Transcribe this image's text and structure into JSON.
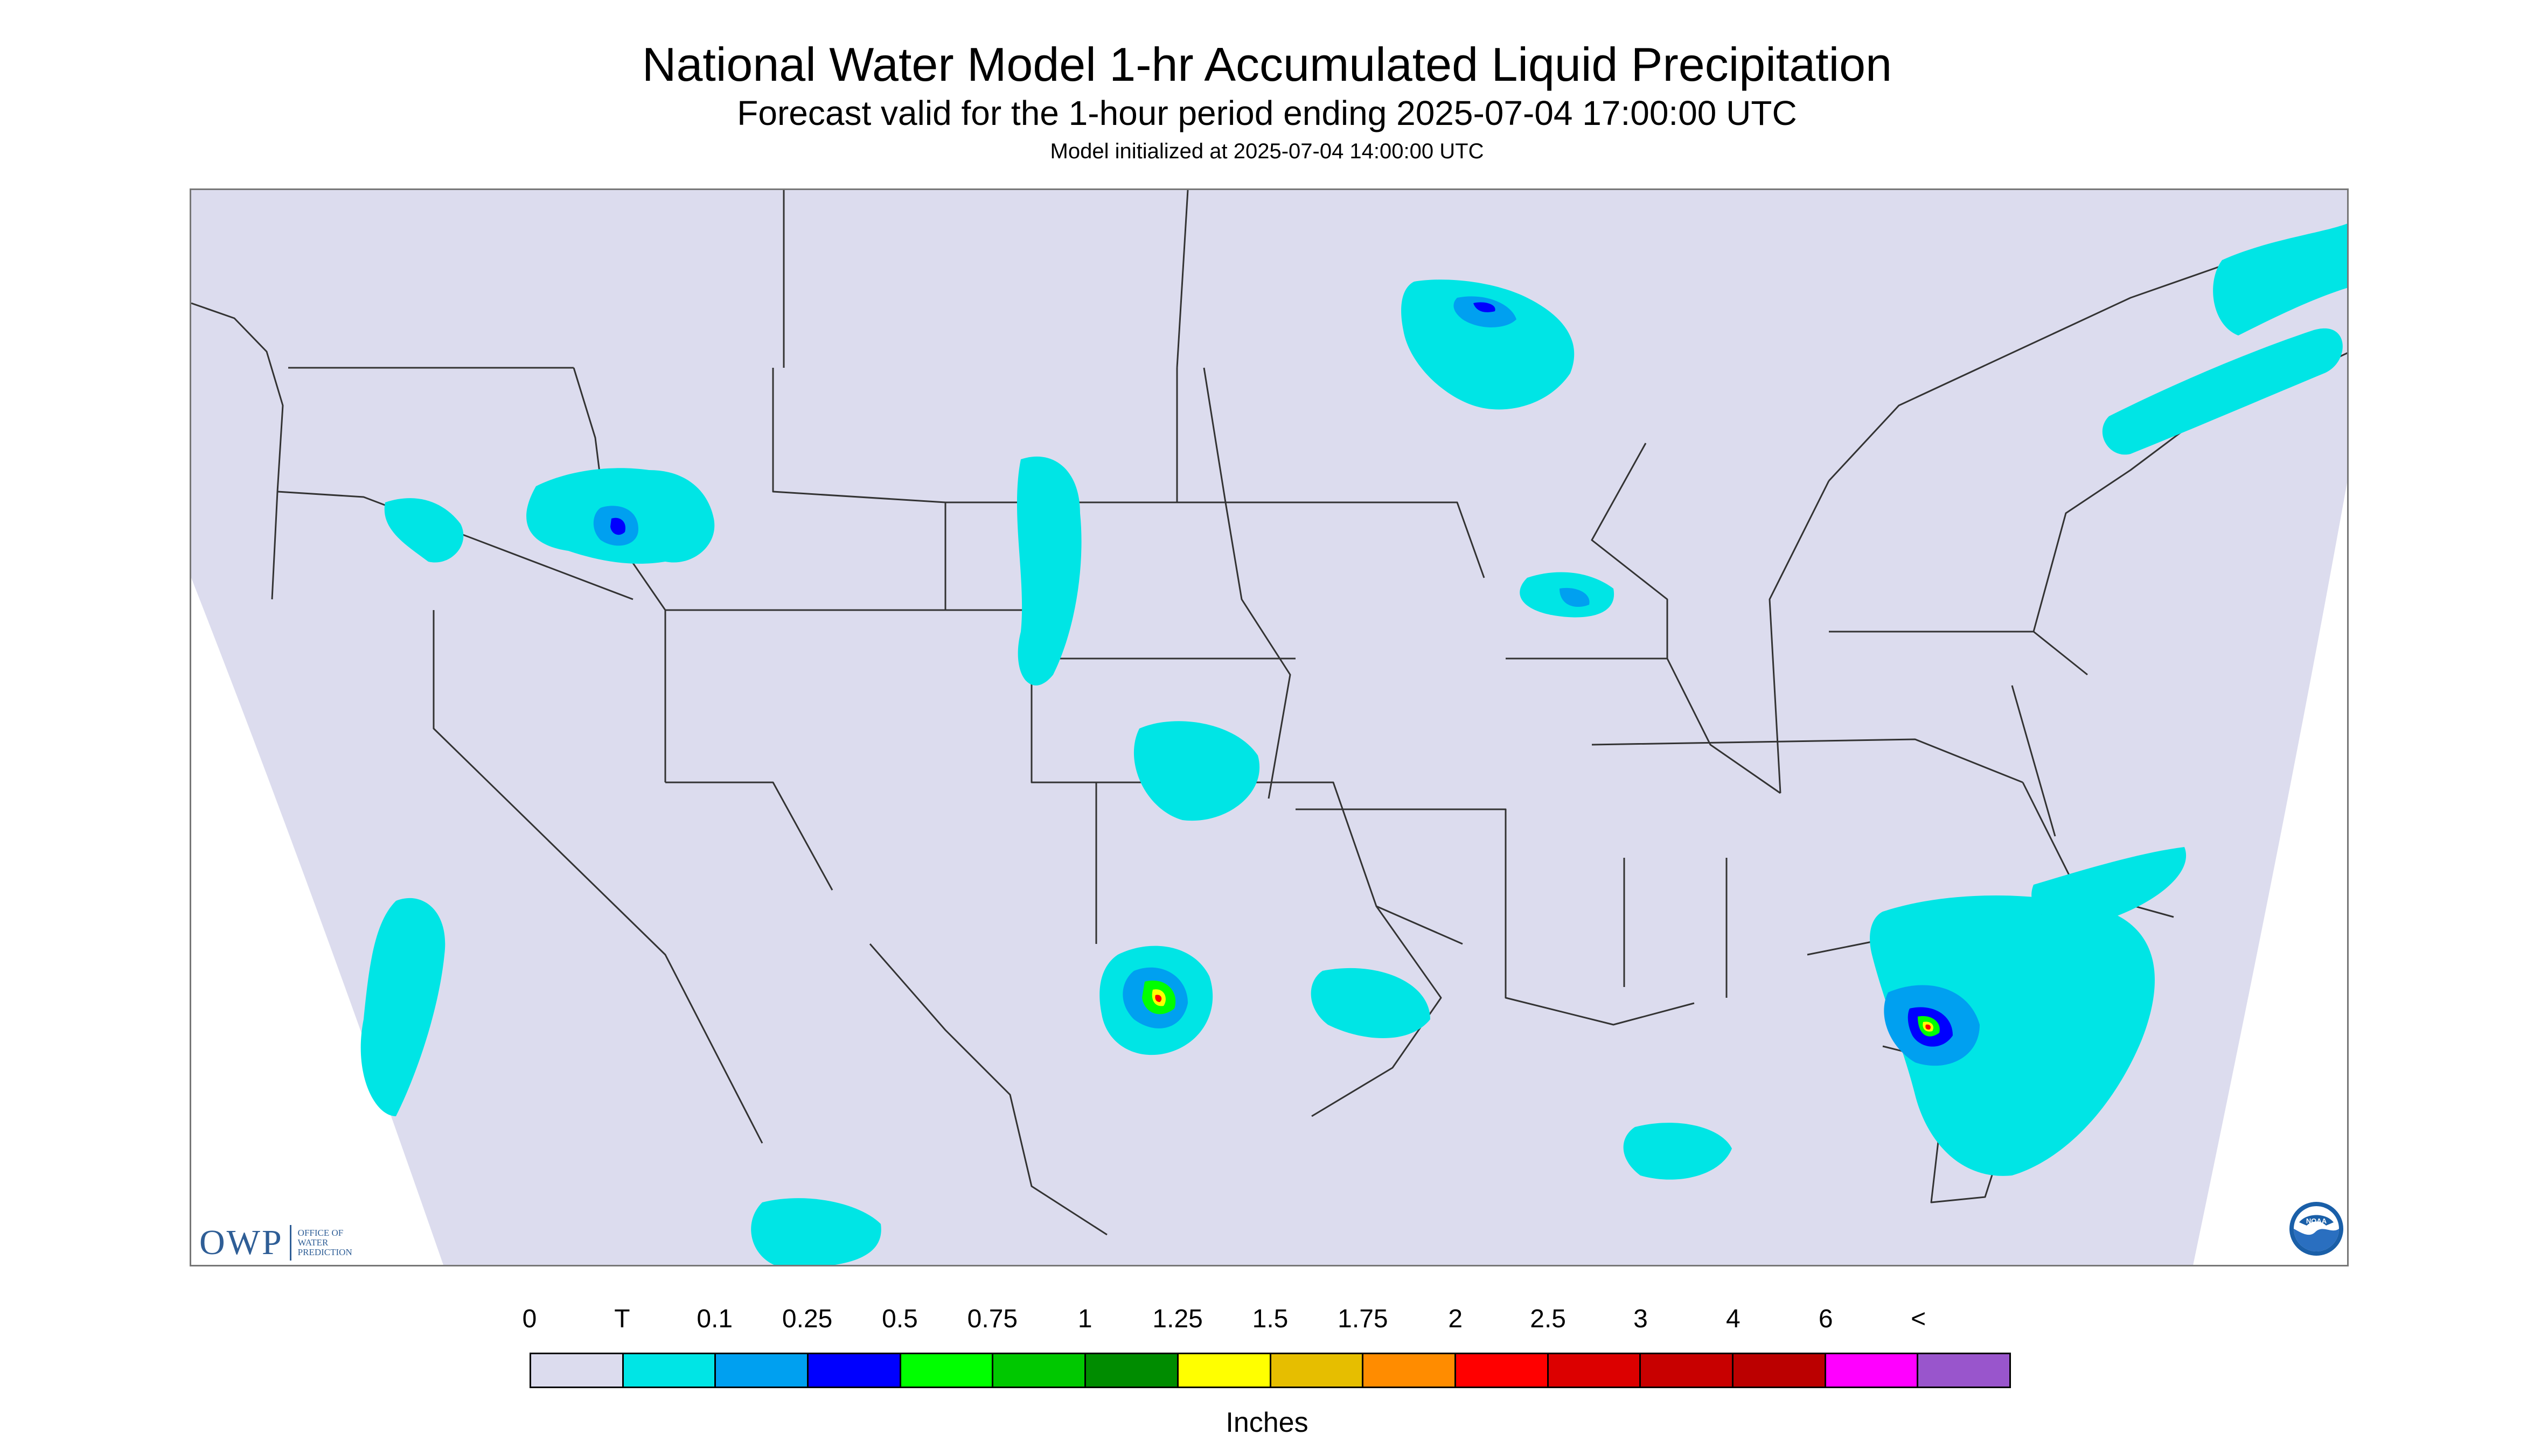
{
  "title": "National Water Model 1-hr Accumulated Liquid Precipitation",
  "subtitle": "Forecast valid for the 1-hour period ending 2025-07-04 17:00:00 UTC",
  "model_init": "Model initialized at 2025-07-04 14:00:00 UTC",
  "units": "Inches",
  "logos": {
    "owp": {
      "abbrev": "OWP",
      "line1": "OFFICE OF",
      "line2": "WATER",
      "line3": "PREDICTION"
    },
    "noaa": {
      "text": "NOAA"
    }
  },
  "legend": {
    "labels": [
      "0",
      "T",
      "0.1",
      "0.25",
      "0.5",
      "0.75",
      "1",
      "1.25",
      "1.5",
      "1.75",
      "2",
      "2.5",
      "3",
      "4",
      "6",
      "<"
    ],
    "colors": [
      "#dcdcee",
      "#00e5e5",
      "#00a0f0",
      "#0000ff",
      "#00ff00",
      "#00c800",
      "#008c00",
      "#ffff00",
      "#e6be00",
      "#ff8c00",
      "#ff0000",
      "#dc0000",
      "#c80000",
      "#bb0000",
      "#ff00ff",
      "#9955cc"
    ]
  },
  "map": {
    "domain_color": "#dcdcee",
    "background_color": "#ffffff",
    "border_color": "#333333",
    "features": [
      "Northern Rockies rain area with blue/dark blue core",
      "Upper Michigan / Lake Superior rain area",
      "Southern Lake Michigan rain area",
      "Central Texas storm with green, yellow and red cores",
      "Off-shore Southeast Atlantic storm with green, yellow and red cores",
      "New England / St. Lawrence rain band",
      "High Plains scattered showers",
      "Gulf coast scattered showers"
    ]
  }
}
